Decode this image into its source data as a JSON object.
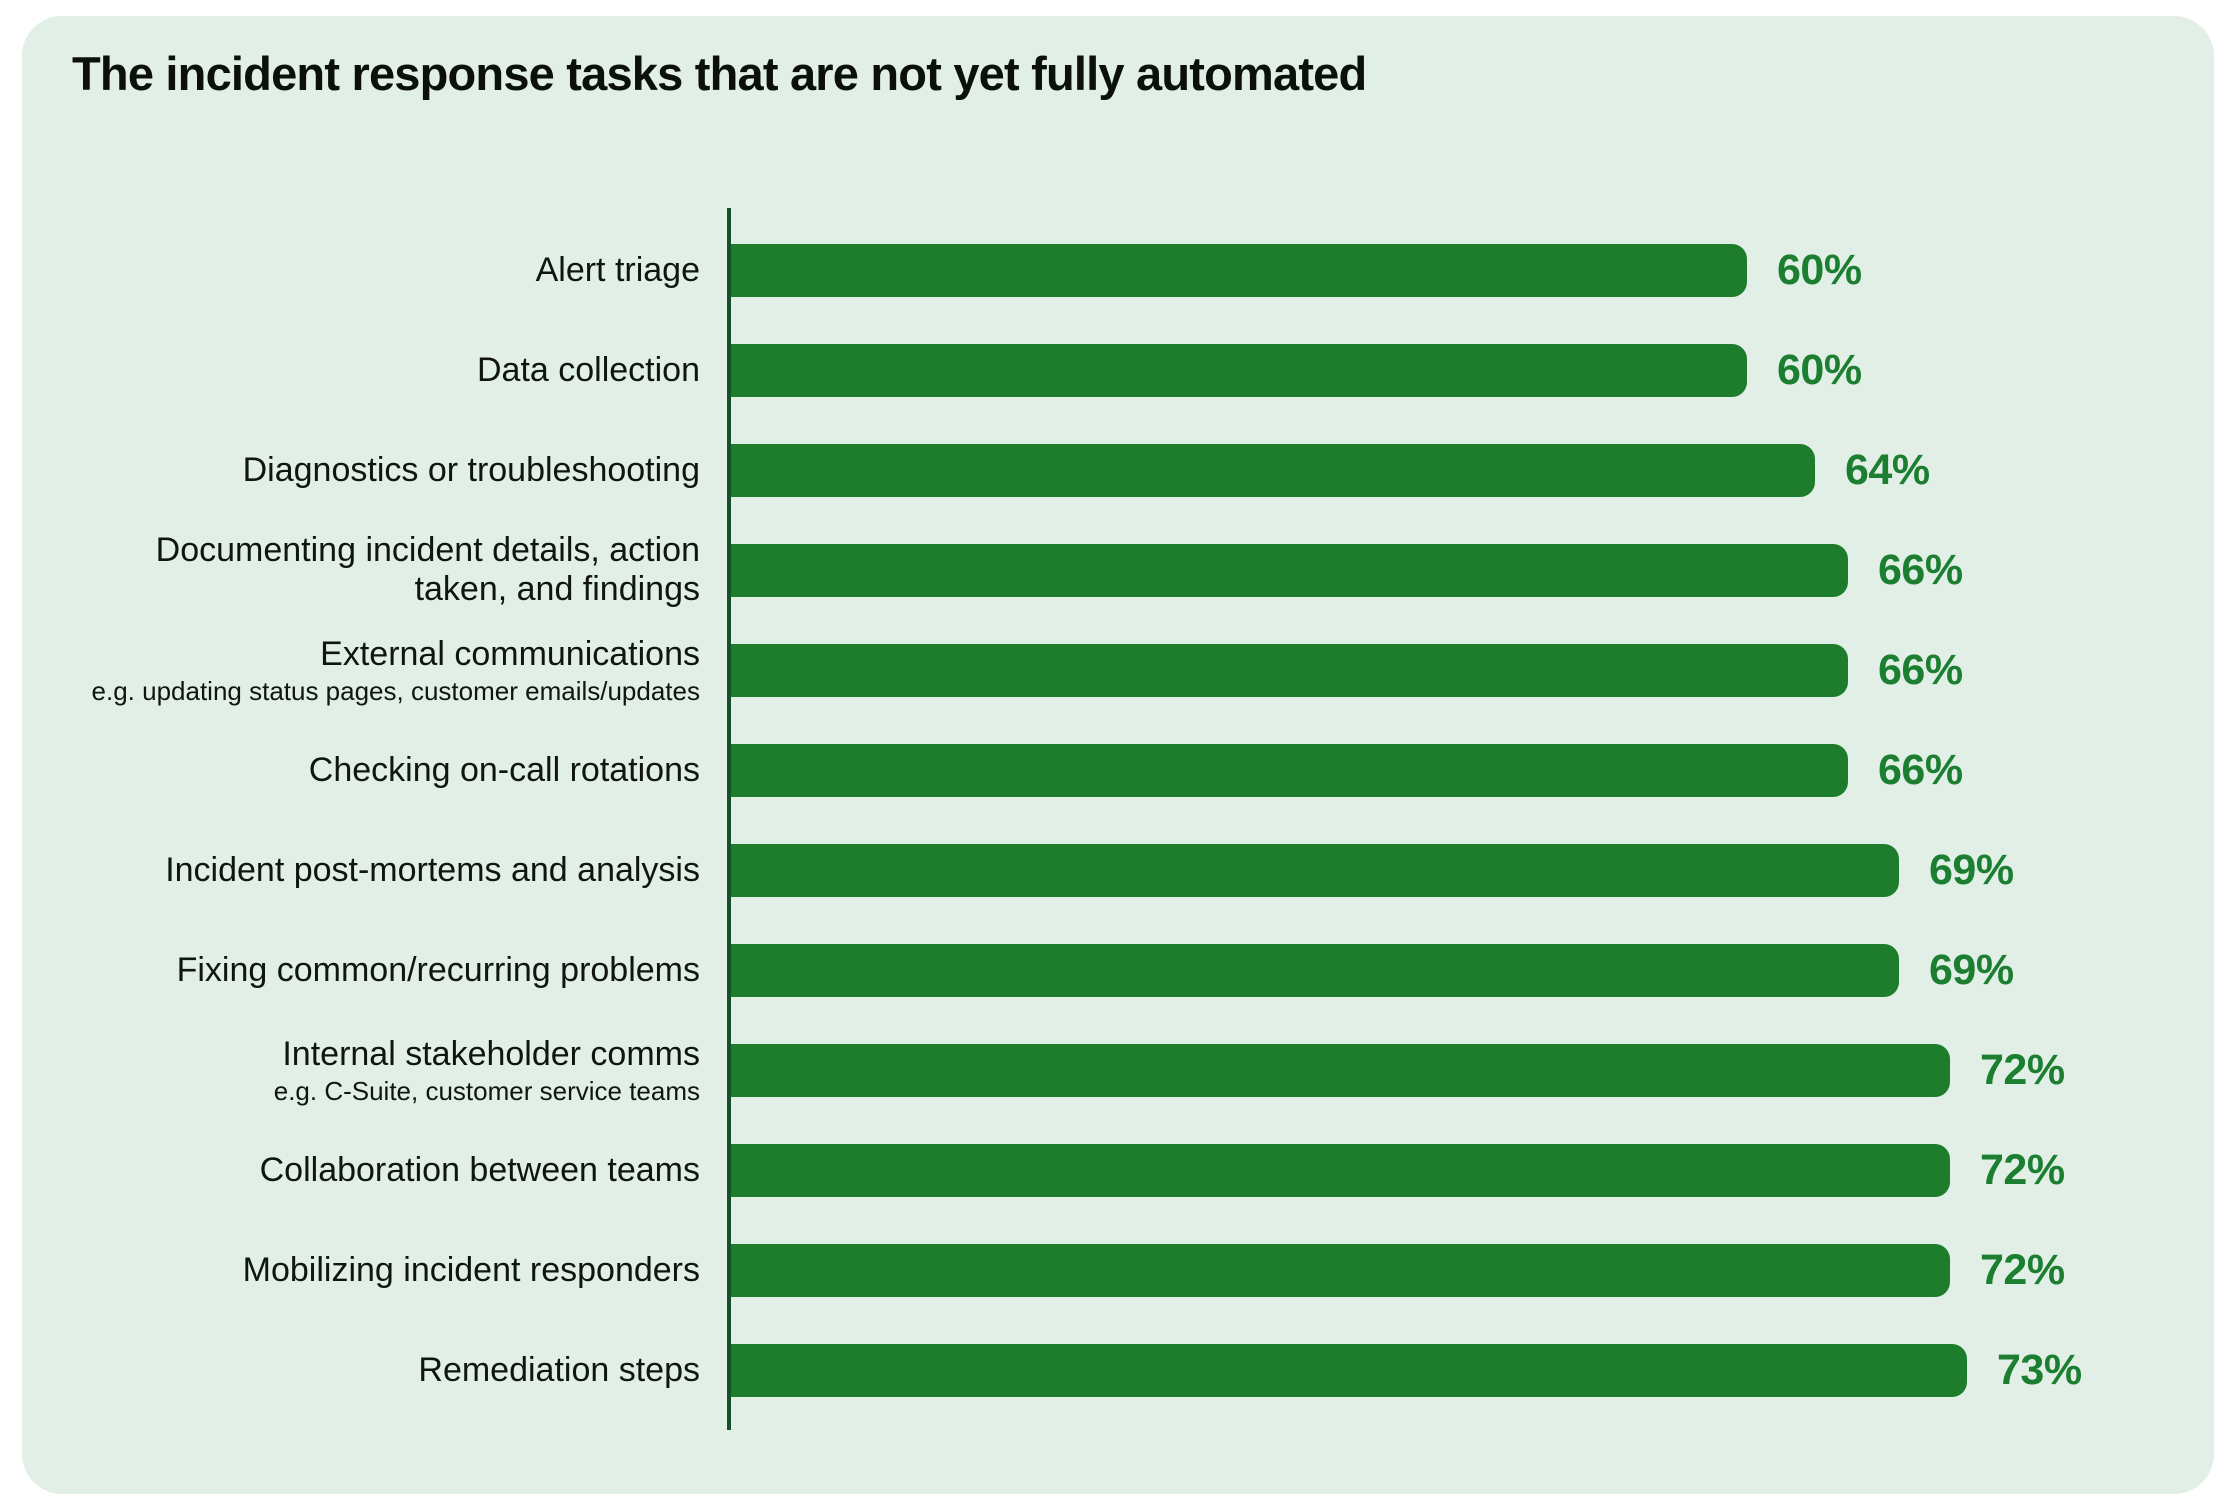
{
  "page": {
    "background_color": "#ffffff"
  },
  "card": {
    "background_color": "#e1efe6"
  },
  "chart_data": {
    "type": "bar",
    "orientation": "horizontal",
    "title": "The incident response tasks that are not yet fully automated",
    "unit": "%",
    "xlim": [
      0,
      100
    ],
    "grid": false,
    "legend": false,
    "bar_color": "#1e7d2d",
    "value_label_color": "#1c7e31",
    "axis_line_color": "#15502a",
    "categories": [
      "Alert triage",
      "Data collection",
      "Diagnostics or troubleshooting",
      "Documenting incident details, action taken, and findings",
      "External communications",
      "Checking on-call rotations",
      "Incident post-mortems and analysis",
      "Fixing common/recurring problems",
      "Internal stakeholder comms",
      "Collaboration between teams",
      "Mobilizing incident responders",
      "Remediation steps"
    ],
    "values": [
      60,
      60,
      64,
      66,
      66,
      66,
      69,
      69,
      72,
      72,
      72,
      73
    ],
    "rows": [
      {
        "label": "Alert triage",
        "sublabel": "",
        "value": 60,
        "value_label": "60%"
      },
      {
        "label": "Data collection",
        "sublabel": "",
        "value": 60,
        "value_label": "60%"
      },
      {
        "label": "Diagnostics or troubleshooting",
        "sublabel": "",
        "value": 64,
        "value_label": "64%"
      },
      {
        "label": "Documenting incident details, action\ntaken, and findings",
        "sublabel": "",
        "value": 66,
        "value_label": "66%"
      },
      {
        "label": "External communications",
        "sublabel": "e.g. updating status pages, customer emails/updates",
        "value": 66,
        "value_label": "66%"
      },
      {
        "label": "Checking on-call rotations",
        "sublabel": "",
        "value": 66,
        "value_label": "66%"
      },
      {
        "label": "Incident post-mortems and analysis",
        "sublabel": "",
        "value": 69,
        "value_label": "69%"
      },
      {
        "label": "Fixing common/recurring problems",
        "sublabel": "",
        "value": 69,
        "value_label": "69%"
      },
      {
        "label": "Internal stakeholder comms",
        "sublabel": "e.g. C-Suite, customer service teams",
        "value": 72,
        "value_label": "72%"
      },
      {
        "label": "Collaboration between teams",
        "sublabel": "",
        "value": 72,
        "value_label": "72%"
      },
      {
        "label": "Mobilizing incident responders",
        "sublabel": "",
        "value": 72,
        "value_label": "72%"
      },
      {
        "label": "Remediation steps",
        "sublabel": "",
        "value": 73,
        "value_label": "73%"
      }
    ]
  }
}
